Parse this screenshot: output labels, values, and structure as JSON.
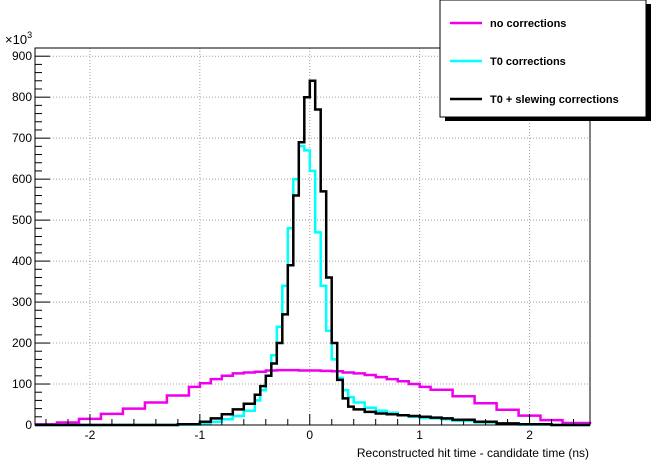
{
  "chart_data": {
    "type": "line",
    "title": "",
    "xlabel": "Reconstructed hit time - candidate time (ns)",
    "ylabel": "",
    "y_exponent_label": "×10",
    "y_exponent_power": "3",
    "xlim": [
      -2.5,
      2.55
    ],
    "ylim": [
      0,
      920
    ],
    "x_ticks": [
      -2,
      -1,
      0,
      1,
      2
    ],
    "x_tick_labels": [
      "-2",
      "-1",
      "0",
      "1",
      "2"
    ],
    "y_ticks": [
      0,
      100,
      200,
      300,
      400,
      500,
      600,
      700,
      800,
      900
    ],
    "y_tick_labels": [
      "0",
      "100",
      "200",
      "300",
      "400",
      "500",
      "600",
      "700",
      "800",
      "900"
    ],
    "grid": true,
    "step": true,
    "legend_position": "top-right",
    "series": [
      {
        "name": "no corrections",
        "color": "#ee00ee",
        "x": [
          -2.5,
          -2.3,
          -2.1,
          -1.9,
          -1.7,
          -1.5,
          -1.3,
          -1.1,
          -1.0,
          -0.9,
          -0.8,
          -0.7,
          -0.6,
          -0.5,
          -0.4,
          -0.3,
          -0.2,
          -0.1,
          0.0,
          0.1,
          0.2,
          0.3,
          0.4,
          0.5,
          0.6,
          0.7,
          0.8,
          0.9,
          1.0,
          1.1,
          1.3,
          1.5,
          1.7,
          1.9,
          2.1,
          2.3,
          2.55
        ],
        "y": [
          2,
          6,
          15,
          27,
          40,
          55,
          72,
          93,
          102,
          112,
          120,
          126,
          128,
          130,
          133,
          134,
          134,
          133,
          133,
          132,
          131,
          128,
          126,
          122,
          117,
          112,
          107,
          100,
          93,
          86,
          70,
          53,
          37,
          23,
          12,
          5,
          2
        ]
      },
      {
        "name": "T0 corrections",
        "color": "#00ffff",
        "x": [
          -2.5,
          -1.2,
          -1.0,
          -0.9,
          -0.8,
          -0.7,
          -0.6,
          -0.5,
          -0.45,
          -0.4,
          -0.35,
          -0.3,
          -0.25,
          -0.2,
          -0.15,
          -0.1,
          -0.05,
          0.0,
          0.05,
          0.1,
          0.15,
          0.2,
          0.25,
          0.3,
          0.35,
          0.4,
          0.5,
          0.6,
          0.7,
          0.8,
          0.9,
          1.0,
          1.1,
          1.2,
          1.3,
          1.5,
          1.7,
          1.9,
          2.2,
          2.55
        ],
        "y": [
          0,
          1,
          4,
          8,
          14,
          22,
          35,
          60,
          85,
          120,
          170,
          240,
          340,
          480,
          600,
          680,
          670,
          620,
          470,
          340,
          230,
          160,
          115,
          85,
          68,
          55,
          42,
          35,
          30,
          24,
          20,
          17,
          16,
          14,
          10,
          6,
          3,
          1,
          0,
          0
        ]
      },
      {
        "name": "T0 + slewing corrections",
        "color": "#000000",
        "x": [
          -2.5,
          -1.2,
          -1.0,
          -0.9,
          -0.8,
          -0.7,
          -0.6,
          -0.5,
          -0.45,
          -0.4,
          -0.35,
          -0.3,
          -0.25,
          -0.2,
          -0.15,
          -0.1,
          -0.05,
          0.0,
          0.05,
          0.1,
          0.15,
          0.2,
          0.25,
          0.3,
          0.35,
          0.4,
          0.5,
          0.6,
          0.7,
          0.8,
          0.9,
          1.0,
          1.1,
          1.2,
          1.3,
          1.5,
          1.7,
          1.9,
          2.2,
          2.55
        ],
        "y": [
          0,
          2,
          8,
          16,
          26,
          38,
          52,
          74,
          95,
          120,
          150,
          200,
          270,
          390,
          560,
          690,
          800,
          840,
          770,
          570,
          360,
          200,
          110,
          65,
          45,
          38,
          32,
          28,
          26,
          24,
          22,
          20,
          18,
          16,
          13,
          8,
          4,
          2,
          0,
          0
        ]
      }
    ]
  },
  "colors": {
    "background": "#ffffff",
    "axis": "#000000",
    "grid": "#a0a0a0"
  }
}
